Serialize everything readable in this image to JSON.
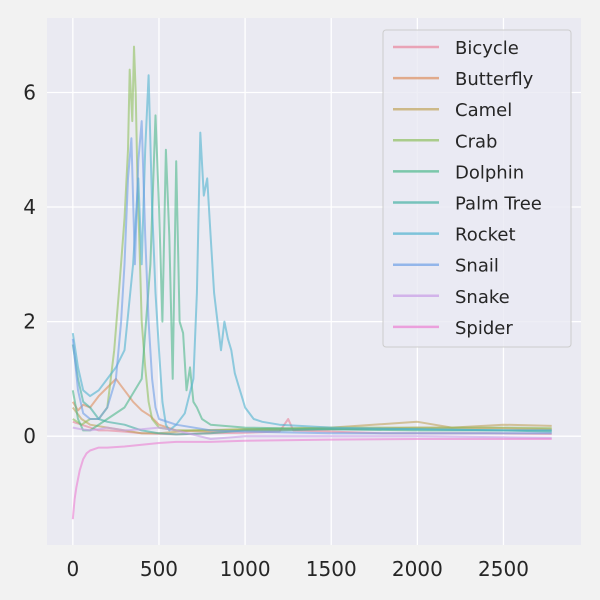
{
  "chart_data": {
    "type": "line",
    "title": "",
    "xlabel": "",
    "ylabel": "",
    "xlim": [
      -150,
      2950
    ],
    "ylim": [
      -1.9,
      7.3
    ],
    "xticks": [
      0,
      500,
      1000,
      1500,
      2000,
      2500
    ],
    "yticks": [
      0,
      2,
      4,
      6
    ],
    "xtick_labels": [
      "0",
      "500",
      "1000",
      "1500",
      "2000",
      "2500"
    ],
    "ytick_labels": [
      "0",
      "2",
      "4",
      "6"
    ],
    "grid": true,
    "legend_position": "top-right",
    "series": [
      {
        "name": "Bicycle",
        "color": "#e8849b",
        "points": [
          [
            0,
            0.25
          ],
          [
            50,
            0.2
          ],
          [
            100,
            0.15
          ],
          [
            150,
            0.1
          ],
          [
            200,
            0.1
          ],
          [
            300,
            0.08
          ],
          [
            400,
            0.05
          ],
          [
            600,
            0.03
          ],
          [
            800,
            0.05
          ],
          [
            1000,
            0.06
          ],
          [
            1200,
            0.08
          ],
          [
            1250,
            0.3
          ],
          [
            1280,
            0.1
          ],
          [
            1500,
            0.08
          ],
          [
            1800,
            0.05
          ],
          [
            2000,
            0.05
          ],
          [
            2400,
            0.05
          ],
          [
            2780,
            0.04
          ]
        ]
      },
      {
        "name": "Butterfly",
        "color": "#dd8e5e",
        "points": [
          [
            0,
            0.6
          ],
          [
            30,
            0.45
          ],
          [
            60,
            0.55
          ],
          [
            100,
            0.5
          ],
          [
            150,
            0.7
          ],
          [
            200,
            0.85
          ],
          [
            250,
            1.0
          ],
          [
            300,
            0.8
          ],
          [
            350,
            0.6
          ],
          [
            400,
            0.45
          ],
          [
            450,
            0.35
          ],
          [
            500,
            0.2
          ],
          [
            550,
            0.15
          ],
          [
            600,
            0.1
          ],
          [
            800,
            0.08
          ],
          [
            1000,
            0.1
          ],
          [
            1500,
            0.12
          ],
          [
            2000,
            0.15
          ],
          [
            2500,
            0.14
          ],
          [
            2780,
            0.12
          ]
        ]
      },
      {
        "name": "Camel",
        "color": "#c0a45a",
        "points": [
          [
            0,
            0.5
          ],
          [
            50,
            0.3
          ],
          [
            100,
            0.2
          ],
          [
            200,
            0.15
          ],
          [
            300,
            0.1
          ],
          [
            400,
            0.05
          ],
          [
            500,
            0.05
          ],
          [
            700,
            0.1
          ],
          [
            1000,
            0.12
          ],
          [
            1500,
            0.15
          ],
          [
            2000,
            0.25
          ],
          [
            2200,
            0.15
          ],
          [
            2500,
            0.2
          ],
          [
            2780,
            0.18
          ]
        ]
      },
      {
        "name": "Crab",
        "color": "#8fbf5e",
        "points": [
          [
            0,
            0.3
          ],
          [
            50,
            0.2
          ],
          [
            100,
            0.3
          ],
          [
            150,
            0.3
          ],
          [
            200,
            0.5
          ],
          [
            240,
            1.5
          ],
          [
            270,
            2.6
          ],
          [
            300,
            3.8
          ],
          [
            320,
            5.0
          ],
          [
            330,
            6.4
          ],
          [
            345,
            5.5
          ],
          [
            355,
            6.8
          ],
          [
            365,
            6.0
          ],
          [
            375,
            4.5
          ],
          [
            385,
            3.5
          ],
          [
            400,
            2.0
          ],
          [
            420,
            1.2
          ],
          [
            440,
            0.6
          ],
          [
            460,
            0.3
          ],
          [
            500,
            0.15
          ],
          [
            600,
            0.1
          ],
          [
            800,
            0.1
          ],
          [
            1000,
            0.12
          ],
          [
            1500,
            0.15
          ],
          [
            2000,
            0.15
          ],
          [
            2500,
            0.15
          ],
          [
            2780,
            0.14
          ]
        ]
      },
      {
        "name": "Dolphin",
        "color": "#4cb88a",
        "points": [
          [
            0,
            0.8
          ],
          [
            30,
            0.3
          ],
          [
            60,
            0.1
          ],
          [
            100,
            0.1
          ],
          [
            200,
            0.3
          ],
          [
            300,
            0.5
          ],
          [
            400,
            1.0
          ],
          [
            450,
            3.0
          ],
          [
            480,
            5.6
          ],
          [
            500,
            4.0
          ],
          [
            520,
            2.0
          ],
          [
            540,
            5.0
          ],
          [
            560,
            3.5
          ],
          [
            580,
            1.0
          ],
          [
            600,
            4.8
          ],
          [
            620,
            2.0
          ],
          [
            640,
            1.8
          ],
          [
            660,
            0.8
          ],
          [
            680,
            1.2
          ],
          [
            700,
            0.6
          ],
          [
            720,
            0.5
          ],
          [
            750,
            0.3
          ],
          [
            800,
            0.2
          ],
          [
            1000,
            0.15
          ],
          [
            1500,
            0.12
          ],
          [
            2000,
            0.1
          ],
          [
            2500,
            0.1
          ],
          [
            2780,
            0.1
          ]
        ]
      },
      {
        "name": "Palm Tree",
        "color": "#45b0a2",
        "points": [
          [
            0,
            1.6
          ],
          [
            30,
            1.0
          ],
          [
            60,
            0.6
          ],
          [
            100,
            0.5
          ],
          [
            150,
            0.3
          ],
          [
            200,
            0.25
          ],
          [
            300,
            0.2
          ],
          [
            400,
            0.1
          ],
          [
            500,
            0.05
          ],
          [
            600,
            0.03
          ],
          [
            800,
            0.05
          ],
          [
            1000,
            0.1
          ],
          [
            1200,
            0.1
          ],
          [
            1500,
            0.12
          ],
          [
            2000,
            0.12
          ],
          [
            2500,
            0.1
          ],
          [
            2780,
            0.08
          ]
        ]
      },
      {
        "name": "Rocket",
        "color": "#4fb2cf",
        "points": [
          [
            0,
            1.8
          ],
          [
            30,
            1.2
          ],
          [
            60,
            0.8
          ],
          [
            100,
            0.7
          ],
          [
            150,
            0.8
          ],
          [
            200,
            1.0
          ],
          [
            250,
            1.2
          ],
          [
            300,
            1.5
          ],
          [
            350,
            3.0
          ],
          [
            380,
            4.5
          ],
          [
            400,
            3.0
          ],
          [
            420,
            5.0
          ],
          [
            440,
            6.3
          ],
          [
            460,
            4.0
          ],
          [
            480,
            2.5
          ],
          [
            500,
            1.5
          ],
          [
            520,
            0.6
          ],
          [
            540,
            0.2
          ],
          [
            560,
            0.1
          ],
          [
            600,
            0.2
          ],
          [
            650,
            0.4
          ],
          [
            700,
            1.0
          ],
          [
            720,
            2.5
          ],
          [
            740,
            5.3
          ],
          [
            760,
            4.2
          ],
          [
            780,
            4.5
          ],
          [
            800,
            3.5
          ],
          [
            820,
            2.5
          ],
          [
            840,
            2.0
          ],
          [
            860,
            1.5
          ],
          [
            880,
            2.0
          ],
          [
            900,
            1.7
          ],
          [
            920,
            1.5
          ],
          [
            940,
            1.1
          ],
          [
            960,
            0.9
          ],
          [
            980,
            0.7
          ],
          [
            1000,
            0.5
          ],
          [
            1050,
            0.3
          ],
          [
            1100,
            0.25
          ],
          [
            1200,
            0.2
          ],
          [
            1500,
            0.15
          ],
          [
            2000,
            0.12
          ],
          [
            2500,
            0.1
          ],
          [
            2780,
            0.1
          ]
        ]
      },
      {
        "name": "Snail",
        "color": "#6e9fe6",
        "points": [
          [
            0,
            1.7
          ],
          [
            30,
            0.8
          ],
          [
            60,
            0.4
          ],
          [
            100,
            0.3
          ],
          [
            150,
            0.3
          ],
          [
            200,
            0.5
          ],
          [
            250,
            1.0
          ],
          [
            280,
            2.0
          ],
          [
            300,
            3.0
          ],
          [
            320,
            4.5
          ],
          [
            340,
            5.2
          ],
          [
            360,
            3.0
          ],
          [
            380,
            4.8
          ],
          [
            400,
            5.5
          ],
          [
            420,
            3.5
          ],
          [
            440,
            2.0
          ],
          [
            460,
            1.0
          ],
          [
            480,
            0.5
          ],
          [
            500,
            0.3
          ],
          [
            600,
            0.2
          ],
          [
            800,
            0.1
          ],
          [
            1000,
            0.08
          ],
          [
            1500,
            0.05
          ],
          [
            2000,
            0.05
          ],
          [
            2500,
            0.05
          ],
          [
            2780,
            0.05
          ]
        ]
      },
      {
        "name": "Snake",
        "color": "#c79be6",
        "points": [
          [
            0,
            0.15
          ],
          [
            50,
            0.12
          ],
          [
            100,
            0.1
          ],
          [
            150,
            0.12
          ],
          [
            200,
            0.15
          ],
          [
            300,
            0.1
          ],
          [
            400,
            0.12
          ],
          [
            500,
            0.15
          ],
          [
            600,
            0.1
          ],
          [
            800,
            -0.05
          ],
          [
            1000,
            0.0
          ],
          [
            1500,
            0.0
          ],
          [
            2000,
            0.0
          ],
          [
            2500,
            -0.02
          ],
          [
            2780,
            -0.03
          ]
        ]
      },
      {
        "name": "Spider",
        "color": "#eb7fd2",
        "points": [
          [
            0,
            -1.45
          ],
          [
            10,
            -1.1
          ],
          [
            20,
            -0.9
          ],
          [
            40,
            -0.6
          ],
          [
            60,
            -0.4
          ],
          [
            80,
            -0.3
          ],
          [
            100,
            -0.25
          ],
          [
            150,
            -0.2
          ],
          [
            200,
            -0.2
          ],
          [
            300,
            -0.18
          ],
          [
            400,
            -0.15
          ],
          [
            500,
            -0.12
          ],
          [
            600,
            -0.1
          ],
          [
            800,
            -0.1
          ],
          [
            1000,
            -0.08
          ],
          [
            1500,
            -0.06
          ],
          [
            2000,
            -0.05
          ],
          [
            2500,
            -0.05
          ],
          [
            2780,
            -0.05
          ]
        ]
      }
    ]
  }
}
